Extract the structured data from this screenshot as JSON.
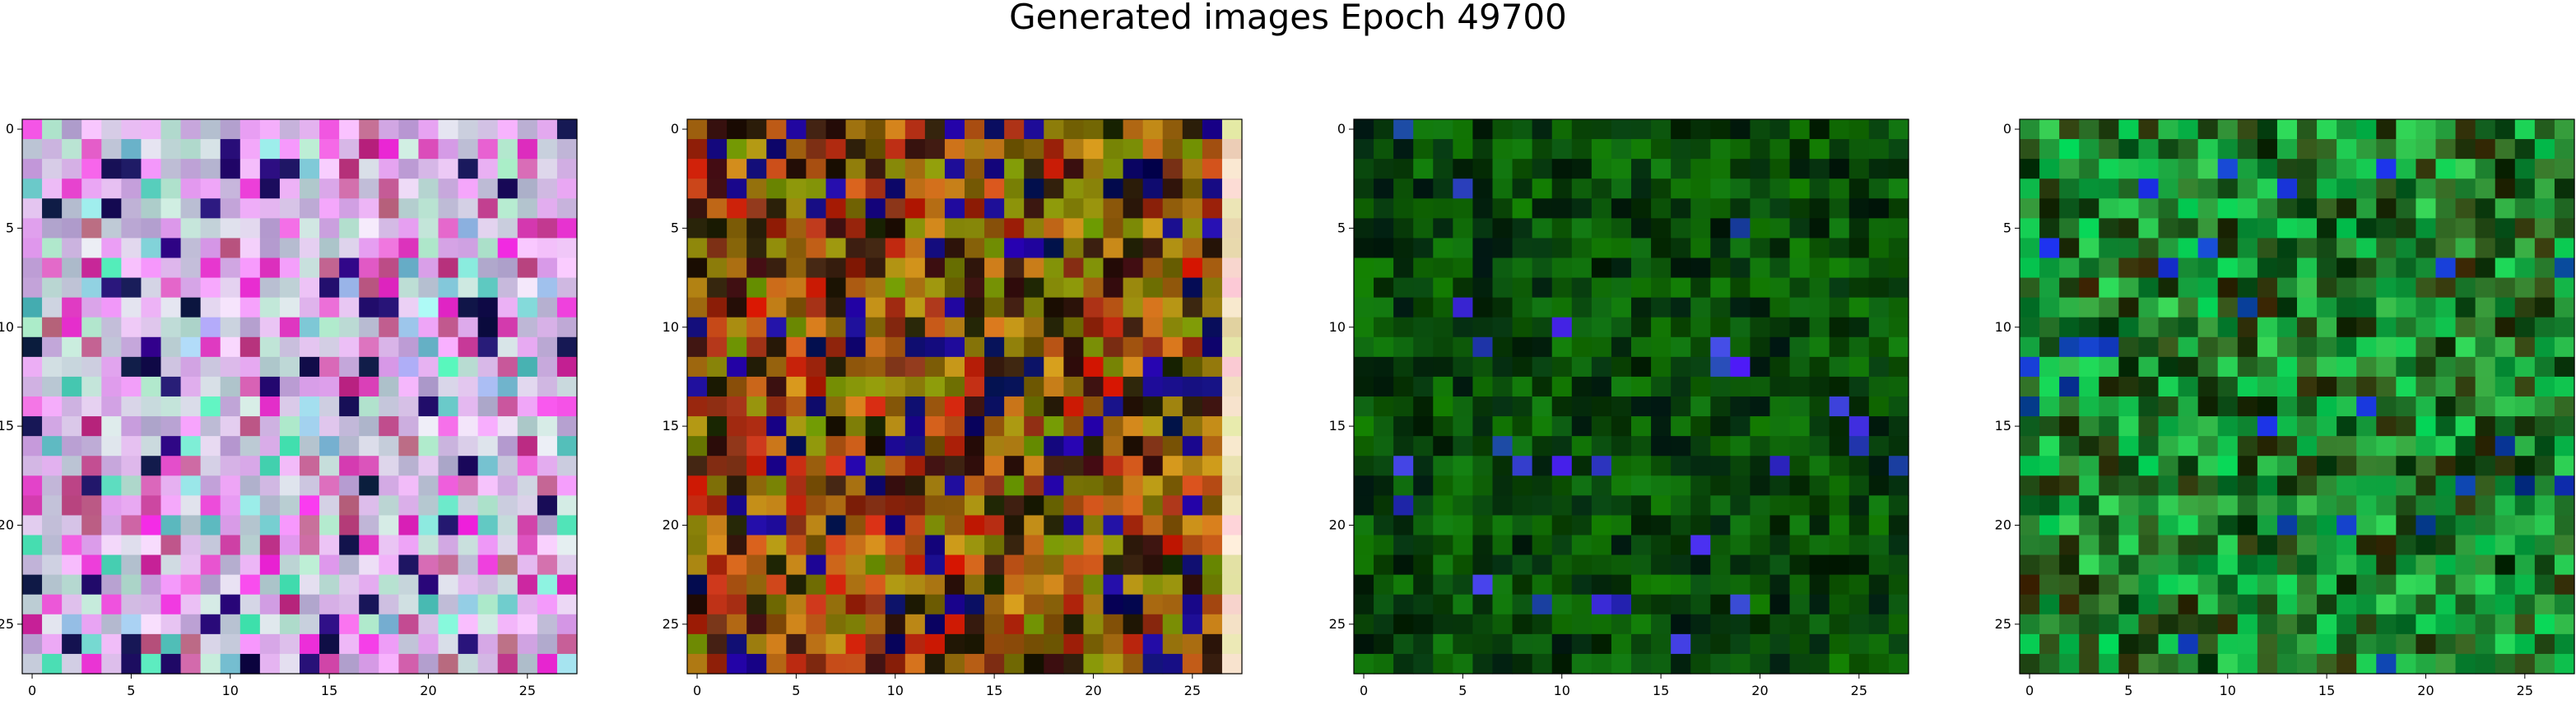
{
  "title": "Generated images Epoch 49700",
  "chart_data": {
    "type": "heatmap",
    "title": "Generated images Epoch 49700",
    "images": [
      {
        "palette": "pastel-multicolor",
        "rows": 28,
        "cols": 28
      },
      {
        "palette": "earth-multicolor",
        "rows": 28,
        "cols": 28
      },
      {
        "palette": "dark-green",
        "rows": 28,
        "cols": 28
      },
      {
        "palette": "bright-green",
        "rows": 28,
        "cols": 28
      }
    ],
    "x_ticks": [
      "0",
      "5",
      "10",
      "15",
      "20",
      "25"
    ],
    "y_ticks": [
      "0",
      "5",
      "10",
      "15",
      "20",
      "25"
    ],
    "xlim": [
      -0.5,
      27.5
    ],
    "ylim": [
      27.5,
      -0.5
    ],
    "grid": false
  }
}
